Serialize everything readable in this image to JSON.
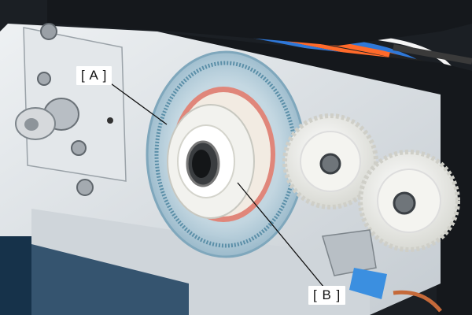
{
  "callouts": {
    "a": {
      "label": "[ A ]"
    },
    "b": {
      "label": "[ B ]"
    }
  },
  "palette": {
    "frame_metal": "#dfe4e8",
    "disc_ring": "#e0867a",
    "gear_white": "#f2f2ee",
    "housing_black": "#15181c",
    "wire_orange": "#ff6a2a",
    "wire_blue": "#2f78d8",
    "tag_blue": "#3b8fe0"
  }
}
